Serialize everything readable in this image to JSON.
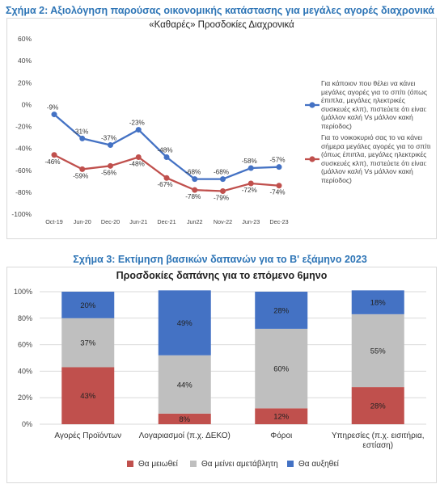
{
  "figure1": {
    "title": "Σχήμα 2: Αξιολόγηση παρούσας οικονομικής κατάστασης για μεγάλες αγορές διαχρονικά",
    "subtitle": "«Καθαρές» Προσδοκίες Διαχρονικά"
  },
  "figure2": {
    "title": "Σχήμα 3: Εκτίμηση βασικών δαπανών για το Β' εξάμηνο 2023",
    "subtitle": "Προσδοκίες δαπάνης για το επόμενο 6μηνο"
  },
  "chart_data": [
    {
      "type": "line",
      "title": "«Καθαρές» Προσδοκίες Διαχρονικά",
      "x": [
        "Oct-19",
        "Jun-20",
        "Dec-20",
        "Jun-21",
        "Dec-21",
        "Jun22",
        "Nov-22",
        "Jun-23",
        "Dec-23"
      ],
      "ylim": [
        -100,
        60
      ],
      "yticks": [
        "60%",
        "40%",
        "20%",
        "0%",
        "-20%",
        "-40%",
        "-60%",
        "-80%",
        "-100%"
      ],
      "grid": false,
      "legend_position": "right",
      "series": [
        {
          "name": "Για κάποιον που θέλει να κάνει μεγάλες αγορές για το σπίτι (όπως έπιπλα, μεγάλες ηλεκτρικές συσκευές κλπ), πιστεύετε ότι είναι: (μάλλον καλή Vs μάλλον κακή περίοδος)",
          "color": "#4472C4",
          "values": [
            -9,
            -31,
            -37,
            -23,
            -48,
            -68,
            -68,
            -58,
            -57
          ],
          "labels": [
            "-9%",
            "-31%",
            "-37%",
            "-23%",
            "-48%",
            "-68%",
            "-68%",
            "-58%",
            "-57%"
          ]
        },
        {
          "name": "Για το νοικοκυριό σας το να κάνει σήμερα μεγάλες αγορές για το σπίτι (όπως έπιπλα, μεγάλες ηλεκτρικές συσκευές κλπ), πιστεύετε ότι είναι: (μάλλον καλή Vs μάλλον κακή περίοδος)",
          "color": "#C0504D",
          "values": [
            -46,
            -59,
            -56,
            -48,
            -67,
            -78,
            -79,
            -72,
            -74
          ],
          "labels": [
            "-46%",
            "-59%",
            "-56%",
            "-48%",
            "-67%",
            "-78%",
            "-79%",
            "-72%",
            "-74%"
          ]
        }
      ]
    },
    {
      "type": "bar",
      "stacked": true,
      "title": "Προσδοκίες δαπάνης για το επόμενο 6μηνο",
      "categories": [
        "Αγορές Προϊόντων",
        "Λογαριασμοί (π.χ. ΔΕΚΟ)",
        "Φόροι",
        "Υπηρεσίες (π.χ. εισιτήρια, εστίαση)"
      ],
      "ylim": [
        0,
        100
      ],
      "yticks": [
        "0%",
        "20%",
        "40%",
        "60%",
        "80%",
        "100%"
      ],
      "grid": true,
      "legend_position": "bottom",
      "series": [
        {
          "name": "Θα μειωθεί",
          "color": "#C0504D",
          "values": [
            43,
            8,
            12,
            28
          ],
          "labels": [
            "43%",
            "8%",
            "12%",
            "28%"
          ]
        },
        {
          "name": "Θα μείνει αμετάβλητη",
          "color": "#BFBFBF",
          "values": [
            37,
            44,
            60,
            55
          ],
          "labels": [
            "37%",
            "44%",
            "60%",
            "55%"
          ]
        },
        {
          "name": "Θα αυξηθεί",
          "color": "#4472C4",
          "values": [
            20,
            49,
            28,
            18
          ],
          "labels": [
            "20%",
            "49%",
            "28%",
            "18%"
          ]
        }
      ]
    }
  ]
}
